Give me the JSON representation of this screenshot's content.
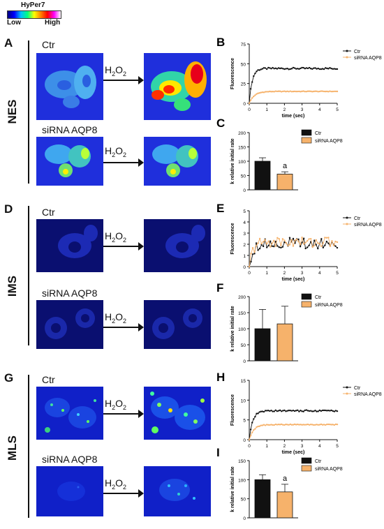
{
  "colorbar": {
    "title": "HyPer7",
    "low": "Low",
    "high": "High"
  },
  "rows": [
    {
      "name": "NES",
      "letter": "A",
      "ctr_label": "Ctr",
      "sirna_label": "siRNA  AQP8",
      "treatment": "H",
      "treatment_sub": "2",
      "treatment_end": "O",
      "treatment_sub2": "2"
    },
    {
      "name": "IMS",
      "letter": "D",
      "ctr_label": "Ctr",
      "sirna_label": "siRNA  AQP8",
      "treatment": "H",
      "treatment_sub": "2",
      "treatment_end": "O",
      "treatment_sub2": "2"
    },
    {
      "name": "MLS",
      "letter": "G",
      "ctr_label": "Ctr",
      "sirna_label": "siRNA AQP8",
      "treatment": "H",
      "treatment_sub": "2",
      "treatment_end": "O",
      "treatment_sub2": "2"
    }
  ],
  "legend": {
    "ctr": "Ctr",
    "sirna": "siRNA AQP8"
  },
  "colors": {
    "ctr": "#111111",
    "sirna": "#f6b26b"
  },
  "chart_data": [
    {
      "letter": "B",
      "type": "line",
      "xlabel": "time (sec)",
      "ylabel": "Fluorescence",
      "xlim": [
        0,
        5
      ],
      "ylim": [
        0,
        75
      ],
      "xticks": [
        0,
        1,
        2,
        3,
        4,
        5
      ],
      "yticks": [
        0,
        25,
        50,
        75
      ],
      "series": [
        {
          "name": "Ctr",
          "plateau": 44,
          "k": 6
        },
        {
          "name": "siRNA AQP8",
          "plateau": 15,
          "k": 3.5
        }
      ]
    },
    {
      "letter": "C",
      "type": "bar",
      "ylabel": "k relative initial rate",
      "ylim": [
        0,
        200
      ],
      "yticks": [
        0,
        50,
        100,
        150,
        200
      ],
      "categories": [
        "Ctr",
        "siRNA AQP8"
      ],
      "values": [
        100,
        55
      ],
      "errors": [
        12,
        8
      ],
      "annotation": "a"
    },
    {
      "letter": "E",
      "type": "line",
      "xlabel": "time (sec)",
      "ylabel": "Fluorescence",
      "xlim": [
        0,
        5
      ],
      "ylim": [
        0,
        5
      ],
      "xticks": [
        0,
        1,
        2,
        3,
        4,
        5
      ],
      "yticks": [
        0,
        1,
        2,
        3,
        4,
        5
      ],
      "series": [
        {
          "name": "Ctr",
          "plateau": 2.1,
          "k": 5
        },
        {
          "name": "siRNA AQP8",
          "plateau": 2.2,
          "k": 5
        }
      ]
    },
    {
      "letter": "F",
      "type": "bar",
      "ylabel": "k relative initial rate",
      "ylim": [
        0,
        200
      ],
      "yticks": [
        0,
        50,
        100,
        150,
        200
      ],
      "categories": [
        "Ctr",
        "siRNA AQP8"
      ],
      "values": [
        100,
        115
      ],
      "errors": [
        60,
        55
      ],
      "annotation": ""
    },
    {
      "letter": "H",
      "type": "line",
      "xlabel": "time (sec)",
      "ylabel": "Fluorescence",
      "xlim": [
        0,
        5
      ],
      "ylim": [
        0,
        15
      ],
      "xticks": [
        0,
        1,
        2,
        3,
        4,
        5
      ],
      "yticks": [
        0,
        5,
        10,
        15
      ],
      "series": [
        {
          "name": "Ctr",
          "plateau": 7.3,
          "k": 5
        },
        {
          "name": "siRNA AQP8",
          "plateau": 3.8,
          "k": 4
        }
      ]
    },
    {
      "letter": "I",
      "type": "bar",
      "ylabel": "k relative initial rate",
      "ylim": [
        0,
        150
      ],
      "yticks": [
        0,
        50,
        100,
        150
      ],
      "categories": [
        "Ctr",
        "siRNA AQP8"
      ],
      "values": [
        100,
        68
      ],
      "errors": [
        13,
        20
      ],
      "annotation": "a"
    }
  ]
}
